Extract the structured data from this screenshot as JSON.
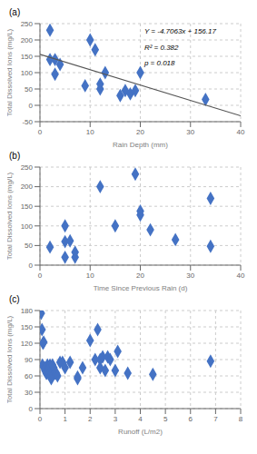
{
  "chart_data": [
    {
      "type": "scatter",
      "title": "(a)",
      "xlabel": "Rain Depth (mm)",
      "ylabel": "Total Dissolved Ions (mg/L)",
      "xlim": [
        0,
        40
      ],
      "ylim": [
        -50,
        250
      ],
      "xticks": [
        0,
        10,
        20,
        30,
        40
      ],
      "yticks": [
        -50,
        0,
        50,
        100,
        150,
        200,
        250
      ],
      "annotations": [
        "Y = -4.7063x + 156.17",
        "R² = 0.382",
        "p = 0.018"
      ],
      "series": [
        {
          "type": "scatter",
          "marker": "diamond",
          "color": "#4472C4",
          "x": [
            2,
            2,
            3,
            3,
            4,
            9,
            10,
            11,
            12,
            12,
            13,
            16,
            17,
            18,
            19,
            20,
            33
          ],
          "values": [
            230,
            140,
            140,
            95,
            125,
            60,
            200,
            170,
            50,
            65,
            100,
            30,
            45,
            35,
            45,
            100,
            18
          ]
        },
        {
          "type": "line",
          "line_style": "solid",
          "color": "#555555",
          "x": [
            0,
            40
          ],
          "values": [
            156.17,
            -32.082
          ]
        }
      ]
    },
    {
      "type": "scatter",
      "title": "(b)",
      "xlabel": "Time Since Previous Rain (d)",
      "ylabel": "Total Dissolved Ions (mg/L)",
      "xlim": [
        0,
        40
      ],
      "ylim": [
        0,
        250
      ],
      "xticks": [
        0,
        10,
        20,
        30,
        40
      ],
      "yticks": [
        0,
        50,
        100,
        150,
        200,
        250
      ],
      "series": [
        {
          "type": "scatter",
          "marker": "diamond",
          "color": "#4472C4",
          "x": [
            2,
            5,
            5,
            5,
            6,
            7,
            7,
            12,
            15,
            19,
            20,
            20,
            22,
            27,
            34,
            34
          ],
          "values": [
            46,
            100,
            60,
            20,
            62,
            20,
            33,
            200,
            100,
            232,
            128,
            138,
            90,
            65,
            170,
            48
          ]
        }
      ]
    },
    {
      "type": "scatter",
      "title": "(c)",
      "xlabel": "Runoff (L/m2)",
      "ylabel": "Total Dissolved Ions (mg/L)",
      "xlim": [
        0,
        8
      ],
      "ylim": [
        0,
        180
      ],
      "xticks": [
        0,
        1,
        2,
        3,
        4,
        5,
        6,
        7,
        8
      ],
      "yticks": [
        0,
        30,
        60,
        90,
        120,
        150,
        180
      ],
      "series": [
        {
          "type": "scatter",
          "marker": "diamond",
          "color": "#4472C4",
          "x": [
            0.05,
            0.08,
            0.1,
            0.12,
            0.15,
            0.18,
            0.2,
            0.22,
            0.25,
            0.28,
            0.3,
            0.32,
            0.35,
            0.38,
            0.4,
            0.42,
            0.45,
            0.5,
            0.55,
            0.6,
            0.65,
            0.7,
            0.8,
            0.9,
            1.0,
            1.2,
            1.5,
            1.5,
            1.7,
            2.0,
            2.2,
            2.3,
            2.4,
            2.4,
            2.5,
            2.6,
            2.7,
            2.8,
            3.0,
            3.1,
            3.5,
            4.5,
            6.8
          ],
          "values": [
            175,
            145,
            80,
            120,
            122,
            75,
            70,
            75,
            65,
            65,
            80,
            70,
            75,
            65,
            80,
            60,
            55,
            80,
            75,
            65,
            65,
            60,
            85,
            85,
            75,
            85,
            55,
            58,
            75,
            125,
            90,
            145,
            90,
            75,
            95,
            70,
            95,
            90,
            70,
            105,
            65,
            63,
            87
          ]
        }
      ]
    }
  ]
}
